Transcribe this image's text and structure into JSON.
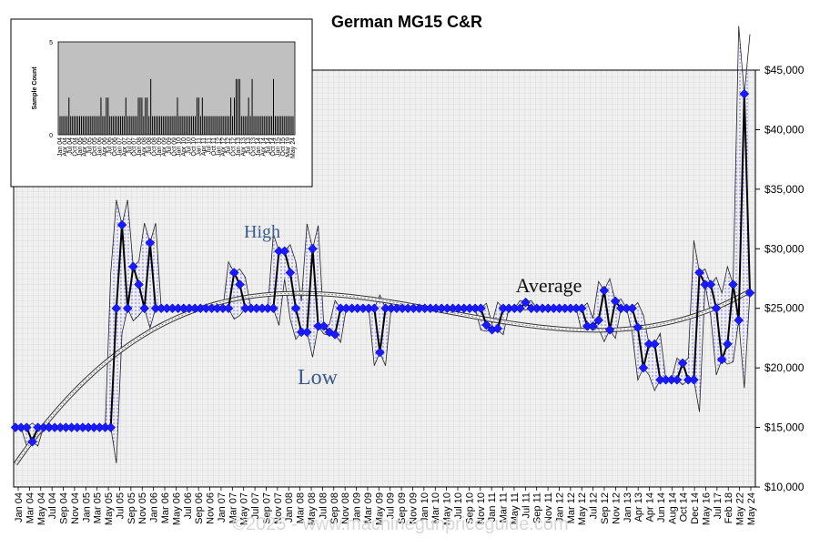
{
  "chart_data": {
    "type": "line",
    "title": "German MG15 C&R",
    "xlabel": "",
    "ylabel": "",
    "ylim": [
      10000,
      45000
    ],
    "yticks": [
      "$10,000",
      "$15,000",
      "$20,000",
      "$25,000",
      "$30,000",
      "$35,000",
      "$40,000",
      "$45,000"
    ],
    "ytick_values": [
      10000,
      15000,
      20000,
      25000,
      30000,
      35000,
      40000,
      45000
    ],
    "grid": true,
    "xticks": [
      "Jan 04",
      "Mar 04",
      "May 04",
      "Jul 04",
      "Sep 04",
      "Nov 04",
      "Jan 05",
      "Mar 05",
      "May 05",
      "Jul 05",
      "Sep 05",
      "Nov 05",
      "Jan 06",
      "Mar 06",
      "May 06",
      "Jul 06",
      "Sep 06",
      "Nov 06",
      "Jan 07",
      "Mar 07",
      "May 07",
      "Jul 07",
      "Sep 07",
      "Nov 07",
      "Jan 08",
      "Mar 08",
      "May 08",
      "Jul 08",
      "Sep 08",
      "Nov 08",
      "Jan 09",
      "Mar 09",
      "May 09",
      "Jul 09",
      "Sep 09",
      "Nov 09",
      "Jan 10",
      "Mar 10",
      "May 10",
      "Jul 10",
      "Sep 10",
      "Nov 10",
      "Jan 11",
      "Mar 11",
      "May 11",
      "Jul 11",
      "Sep 11",
      "Nov 11",
      "Jan 12",
      "Mar 12",
      "May 12",
      "Jul 12",
      "Sep 12",
      "Nov 12",
      "Jan 13",
      "Apr 13",
      "Apr 14",
      "Jun 14",
      "Aug 14",
      "Oct 14",
      "Dec 14",
      "May 16",
      "Jul 17",
      "Feb 18",
      "May 22",
      "May 24"
    ],
    "series": [
      {
        "name": "",
        "values": [
          15000,
          15000,
          15000,
          13800,
          15000,
          15000,
          15000,
          15000,
          15000,
          15000,
          15000,
          15000,
          15000,
          15000,
          15000,
          15000,
          15000,
          15000,
          25000,
          32000,
          25000,
          28500,
          27000,
          25000,
          30500,
          25000,
          25000,
          25000,
          25000,
          25000,
          25000,
          25000,
          25000,
          25000,
          25000,
          25000,
          25000,
          25000,
          25000,
          28000,
          27000,
          25000,
          25000,
          25000,
          25000,
          25000,
          25000,
          29800,
          29800,
          28000,
          25000,
          23000,
          23000,
          30000,
          23500,
          23500,
          23000,
          22800,
          25000,
          25000,
          25000,
          25000,
          25000,
          25000,
          25000,
          21300,
          25000,
          25000,
          25000,
          25000,
          25000,
          25000,
          25000,
          25000,
          25000,
          25000,
          25000,
          25000,
          25000,
          25000,
          25000,
          25000,
          25000,
          25000,
          23600,
          23200,
          23300,
          25000,
          25000,
          25000,
          25000,
          25500,
          25000,
          25000,
          25000,
          25000,
          25000,
          25000,
          25000,
          25000,
          25000,
          25000,
          23500,
          23500,
          24000,
          26500,
          23200,
          25600,
          25000,
          25000,
          25000,
          23400,
          20000,
          22000,
          22000,
          19000,
          19000,
          19000,
          19000,
          20400,
          19000,
          19000,
          28000,
          27000,
          27000,
          25000,
          20700,
          22000,
          27000,
          24000,
          43000,
          26300
        ]
      }
    ],
    "trend_label": "Average",
    "high_label": "High",
    "low_label": "Low",
    "watermark": "©2025 - www.machinegunpriceguide.com",
    "inset": {
      "type": "bar",
      "ylabel": "Sample Count",
      "ylim": [
        0,
        5
      ],
      "yticks": [
        "0",
        "5"
      ],
      "values": [
        1,
        1,
        1,
        1,
        1,
        2,
        1,
        1,
        1,
        1,
        1,
        1,
        1,
        1,
        1,
        1,
        1,
        1,
        1,
        1,
        1,
        1,
        1,
        2,
        1,
        1,
        2,
        2,
        1,
        1,
        1,
        1,
        1,
        1,
        1,
        1,
        1,
        2,
        1,
        1,
        1,
        1,
        1,
        1,
        2,
        2,
        2,
        1,
        2,
        2,
        1,
        3,
        1,
        1,
        1,
        1,
        1,
        1,
        1,
        1,
        1,
        1,
        1,
        1,
        1,
        1,
        2,
        1,
        1,
        1,
        1,
        1,
        1,
        1,
        1,
        1,
        1,
        2,
        2,
        1,
        2,
        1,
        1,
        1,
        1,
        1,
        1,
        1,
        1,
        1,
        1,
        1,
        1,
        1,
        1,
        1,
        2,
        1,
        2,
        3,
        3,
        3,
        1,
        1,
        1,
        1,
        2,
        1,
        3,
        1,
        1,
        1,
        1,
        1,
        1,
        1,
        1,
        1,
        1,
        1,
        3,
        1,
        1,
        1,
        1,
        1,
        1,
        1,
        1,
        1,
        1,
        1
      ],
      "xticks": [
        "Jan 04",
        "Apr 04",
        "Jul 04",
        "Oct 04",
        "Jan 05",
        "Apr 05",
        "Jul 05",
        "Oct 05",
        "Jan 06",
        "Apr 06",
        "Jul 06",
        "Oct 06",
        "Jan 07",
        "Apr 07",
        "Jul 07",
        "Oct 07",
        "Jan 08",
        "Apr 08",
        "Jul 08",
        "Oct 08",
        "Jan 09",
        "Apr 09",
        "Jul 09",
        "Oct 09",
        "Jan 10",
        "Apr 10",
        "Jul 10",
        "Oct 10",
        "Jan 11",
        "Apr 11",
        "Jul 11",
        "Oct 11",
        "Jan 12",
        "Apr 12",
        "Jul 12",
        "Oct 12",
        "Jan 13",
        "Apr 13",
        "Jul 13",
        "Oct 13",
        "Jan 14",
        "Apr 14",
        "Jul 14",
        "Oct 14",
        "Jan 15",
        "Oct 15",
        "Mar 19",
        "May 24"
      ]
    }
  }
}
